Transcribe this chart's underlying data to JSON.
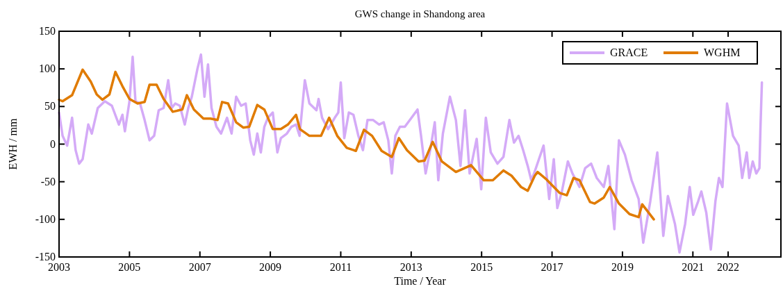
{
  "chart_data": {
    "type": "line",
    "title": "GWS change in Shandong area",
    "xlabel": "Time / Year",
    "ylabel": "EWH / mm",
    "xlim": [
      2003,
      2023.5
    ],
    "xticks": [
      2003,
      2005,
      2007,
      2009,
      2011,
      2013,
      2015,
      2017,
      2019,
      2021,
      2022
    ],
    "ylim": [
      -150,
      150
    ],
    "yticks": [
      -150,
      -100,
      -50,
      0,
      50,
      100,
      150
    ],
    "grid": false,
    "legend": "top right",
    "marker": "none",
    "line_style": "solid",
    "series": [
      {
        "name": "GRACE",
        "color": "#d4aaf7",
        "x": [
          2003.0,
          2003.1,
          2003.23,
          2003.37,
          2003.47,
          2003.57,
          2003.67,
          2003.83,
          2003.93,
          2004.1,
          2004.3,
          2004.5,
          2004.7,
          2004.8,
          2004.87,
          2005.0,
          2005.09,
          2005.17,
          2005.3,
          2005.43,
          2005.57,
          2005.7,
          2005.83,
          2005.97,
          2006.1,
          2006.2,
          2006.3,
          2006.43,
          2006.57,
          2006.67,
          2006.77,
          2006.93,
          2007.03,
          2007.13,
          2007.23,
          2007.33,
          2007.47,
          2007.6,
          2007.77,
          2007.9,
          2008.03,
          2008.17,
          2008.3,
          2008.43,
          2008.53,
          2008.63,
          2008.73,
          2008.83,
          2008.93,
          2009.07,
          2009.2,
          2009.3,
          2009.47,
          2009.6,
          2009.73,
          2009.83,
          2009.98,
          2010.11,
          2010.31,
          2010.37,
          2010.47,
          2010.64,
          2010.83,
          2010.93,
          2011.0,
          2011.1,
          2011.23,
          2011.36,
          2011.5,
          2011.63,
          2011.76,
          2011.92,
          2012.09,
          2012.22,
          2012.35,
          2012.45,
          2012.55,
          2012.68,
          2012.82,
          2013.01,
          2013.18,
          2013.28,
          2013.41,
          2013.54,
          2013.67,
          2013.77,
          2013.9,
          2014.1,
          2014.27,
          2014.4,
          2014.53,
          2014.66,
          2014.86,
          2014.99,
          2015.12,
          2015.26,
          2015.45,
          2015.62,
          2015.79,
          2015.92,
          2016.05,
          2016.18,
          2016.31,
          2016.41,
          2016.49,
          2016.76,
          2016.92,
          2017.05,
          2017.15,
          2017.28,
          2017.45,
          2017.58,
          2017.78,
          2017.94,
          2018.11,
          2018.27,
          2018.47,
          2018.6,
          2018.77,
          2018.9,
          2019.07,
          2019.26,
          2019.46,
          2019.59,
          2019.79,
          2019.99,
          2020.16,
          2020.29,
          2020.49,
          2020.62,
          2020.78,
          2020.91,
          2021.01,
          2021.15,
          2021.24,
          2021.38,
          2021.51,
          2021.64,
          2021.74,
          2021.84,
          2021.97,
          2022.14,
          2022.3,
          2022.4,
          2022.53,
          2022.6,
          2022.7,
          2022.8,
          2022.89,
          2022.92,
          2022.96
        ],
        "values": [
          42,
          11,
          -2,
          35,
          -8,
          -26,
          -20,
          26,
          14,
          48,
          57,
          51,
          26,
          39,
          17,
          57,
          116,
          57,
          54,
          32,
          5,
          11,
          45,
          48,
          85,
          48,
          54,
          51,
          26,
          48,
          63,
          100,
          119,
          63,
          106,
          48,
          23,
          14,
          35,
          14,
          63,
          51,
          54,
          5,
          -14,
          14,
          -11,
          23,
          35,
          42,
          -11,
          8,
          14,
          23,
          26,
          11,
          85,
          54,
          45,
          60,
          35,
          20,
          35,
          42,
          82,
          8,
          42,
          39,
          11,
          -8,
          32,
          32,
          26,
          29,
          5,
          -39,
          11,
          23,
          23,
          35,
          46,
          11,
          -39,
          -8,
          29,
          -48,
          14,
          63,
          32,
          -29,
          45,
          -39,
          7,
          -60,
          35,
          -11,
          -26,
          -17,
          32,
          2,
          11,
          -8,
          -29,
          -48,
          -39,
          -2,
          -73,
          -20,
          -85,
          -63,
          -23,
          -39,
          -57,
          -32,
          -26,
          -45,
          -57,
          -29,
          -113,
          5,
          -14,
          -48,
          -73,
          -131,
          -76,
          -11,
          -122,
          -69,
          -106,
          -144,
          -106,
          -57,
          -94,
          -76,
          -63,
          -91,
          -140,
          -76,
          -45,
          -57,
          54,
          11,
          -2,
          -45,
          -11,
          -45,
          -23,
          -39,
          -32,
          23,
          82
        ]
      },
      {
        "name": "WGHM",
        "color": "#e07b00",
        "x": [
          2003.0,
          2003.1,
          2003.37,
          2003.67,
          2003.9,
          2004.07,
          2004.23,
          2004.43,
          2004.6,
          2004.8,
          2005.0,
          2005.23,
          2005.43,
          2005.57,
          2005.77,
          2005.97,
          2006.23,
          2006.5,
          2006.63,
          2006.83,
          2007.1,
          2007.3,
          2007.5,
          2007.63,
          2007.8,
          2008.03,
          2008.23,
          2008.4,
          2008.63,
          2008.83,
          2009.07,
          2009.3,
          2009.5,
          2009.73,
          2009.84,
          2010.11,
          2010.44,
          2010.67,
          2010.9,
          2011.17,
          2011.43,
          2011.66,
          2011.89,
          2012.16,
          2012.45,
          2012.65,
          2012.88,
          2013.21,
          2013.38,
          2013.61,
          2013.87,
          2014.27,
          2014.7,
          2015.06,
          2015.32,
          2015.62,
          2015.85,
          2016.12,
          2016.31,
          2016.51,
          2016.59,
          2016.82,
          2017.22,
          2017.42,
          2017.61,
          2017.78,
          2018.08,
          2018.21,
          2018.47,
          2018.64,
          2018.9,
          2019.2,
          2019.46,
          2019.56,
          2019.89
        ],
        "values": [
          59,
          57,
          65,
          99,
          83,
          66,
          59,
          66,
          96,
          77,
          60,
          54,
          56,
          79,
          79,
          60,
          43,
          46,
          65,
          46,
          34,
          34,
          32,
          56,
          54,
          29,
          22,
          23,
          52,
          46,
          20,
          20,
          26,
          39,
          20,
          11,
          11,
          35,
          11,
          -5,
          -9,
          19,
          11,
          -9,
          -17,
          8,
          -8,
          -23,
          -22,
          3,
          -23,
          -37,
          -28,
          -48,
          -48,
          -35,
          -42,
          -57,
          -62,
          -42,
          -37,
          -46,
          -65,
          -68,
          -45,
          -48,
          -77,
          -79,
          -71,
          -57,
          -79,
          -93,
          -97,
          -80,
          -100
        ]
      }
    ]
  }
}
